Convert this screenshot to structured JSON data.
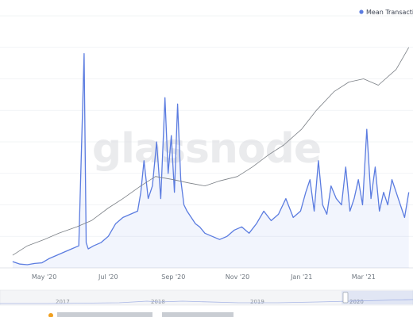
{
  "watermark": "glassnode",
  "legend": {
    "label": "Mean Transaction C",
    "color": "#5b7ce0"
  },
  "navigator": {
    "labels": [
      "2017",
      "2018",
      "2019",
      "2020"
    ]
  },
  "footer": {
    "text": "• • •"
  },
  "chart_data": {
    "type": "line",
    "x_tick_labels": [
      "May '20",
      "Jul '20",
      "Sep '20",
      "Nov '20",
      "Jan '21",
      "Mar '21"
    ],
    "grid": "horizontal",
    "y_axis_labels": "not visible",
    "series": [
      {
        "name": "Mean Transaction C",
        "color": "#5b7ce0",
        "style": "blue filled-line",
        "x": [
          "2020-04-01",
          "2020-04-08",
          "2020-04-15",
          "2020-04-22",
          "2020-04-29",
          "2020-05-06",
          "2020-05-13",
          "2020-05-20",
          "2020-05-27",
          "2020-06-03",
          "2020-06-08",
          "2020-06-10",
          "2020-06-12",
          "2020-06-17",
          "2020-06-24",
          "2020-07-01",
          "2020-07-08",
          "2020-07-15",
          "2020-07-22",
          "2020-07-29",
          "2020-08-01",
          "2020-08-04",
          "2020-08-08",
          "2020-08-12",
          "2020-08-16",
          "2020-08-20",
          "2020-08-24",
          "2020-08-27",
          "2020-08-30",
          "2020-09-02",
          "2020-09-05",
          "2020-09-08",
          "2020-09-11",
          "2020-09-14",
          "2020-09-18",
          "2020-09-22",
          "2020-09-26",
          "2020-10-01",
          "2020-10-08",
          "2020-10-15",
          "2020-10-22",
          "2020-10-29",
          "2020-11-05",
          "2020-11-12",
          "2020-11-19",
          "2020-11-26",
          "2020-12-03",
          "2020-12-10",
          "2020-12-17",
          "2020-12-24",
          "2020-12-31",
          "2021-01-05",
          "2021-01-09",
          "2021-01-13",
          "2021-01-17",
          "2021-01-21",
          "2021-01-25",
          "2021-01-29",
          "2021-02-03",
          "2021-02-08",
          "2021-02-12",
          "2021-02-16",
          "2021-02-20",
          "2021-02-24",
          "2021-02-28",
          "2021-03-04",
          "2021-03-08",
          "2021-03-12",
          "2021-03-16",
          "2021-03-20",
          "2021-03-24",
          "2021-03-28",
          "2021-04-01",
          "2021-04-05",
          "2021-04-09",
          "2021-04-13"
        ],
        "y": [
          1.0,
          0.6,
          0.5,
          0.7,
          0.8,
          1.5,
          2.0,
          2.5,
          3.0,
          3.5,
          34.0,
          4.0,
          3.0,
          3.5,
          4.0,
          5.0,
          7.0,
          8.0,
          8.5,
          9.0,
          12.0,
          17.0,
          11.0,
          13.0,
          20.0,
          11.0,
          27.0,
          15.0,
          21.0,
          12.0,
          26.0,
          14.0,
          10.0,
          9.0,
          8.0,
          7.0,
          6.5,
          5.5,
          5.0,
          4.5,
          5.0,
          6.0,
          6.5,
          5.5,
          7.0,
          9.0,
          7.5,
          8.5,
          11.0,
          8.0,
          9.0,
          12.0,
          14.0,
          9.0,
          17.0,
          10.0,
          8.5,
          13.0,
          11.0,
          10.0,
          16.0,
          9.0,
          11.0,
          14.0,
          10.0,
          22.0,
          11.0,
          16.0,
          9.0,
          12.0,
          10.0,
          14.0,
          12.0,
          10.0,
          8.0,
          12.0
        ]
      },
      {
        "name": "",
        "color": "#7a7f85",
        "style": "grey thin line",
        "x": [
          "2020-04-01",
          "2020-04-15",
          "2020-05-01",
          "2020-05-15",
          "2020-06-01",
          "2020-06-15",
          "2020-07-01",
          "2020-07-15",
          "2020-08-01",
          "2020-08-15",
          "2020-09-01",
          "2020-09-15",
          "2020-10-01",
          "2020-10-15",
          "2020-11-01",
          "2020-11-15",
          "2020-12-01",
          "2020-12-15",
          "2021-01-01",
          "2021-01-15",
          "2021-02-01",
          "2021-02-15",
          "2021-03-01",
          "2021-03-15",
          "2021-04-01",
          "2021-04-13"
        ],
        "y": [
          2.0,
          3.5,
          4.5,
          5.5,
          6.5,
          7.5,
          9.5,
          11.0,
          13.0,
          14.5,
          14.0,
          13.5,
          13.0,
          13.8,
          14.5,
          16.0,
          18.0,
          19.5,
          22.0,
          25.0,
          28.0,
          29.5,
          30.0,
          29.0,
          31.5,
          35.0
        ]
      }
    ]
  }
}
